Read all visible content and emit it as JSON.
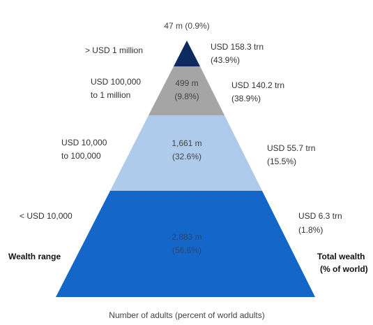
{
  "levels": [
    {
      "range": [
        "> USD 1 million"
      ],
      "adults": [
        "47 m (0.9%)"
      ],
      "wealth": [
        "USD 158.3 trn",
        "(43.9%)"
      ]
    },
    {
      "range": [
        "USD 100,000",
        "to 1 million"
      ],
      "adults": [
        "499 m",
        "(9.8%)"
      ],
      "wealth": [
        "USD 140.2 trn",
        "(38.9%)"
      ]
    },
    {
      "range": [
        "USD 10,000",
        "to 100,000"
      ],
      "adults": [
        "1,661 m",
        "(32.6%)"
      ],
      "wealth": [
        "USD 55.7 trn",
        "(15.5%)"
      ]
    },
    {
      "range": [
        "< USD 10,000"
      ],
      "adults": [
        "2,883 m",
        "(56.6%)"
      ],
      "wealth": [
        "USD 6.3 trn",
        "(1.8%)"
      ]
    }
  ],
  "left_heading": "Wealth range",
  "right_heading": [
    "Total wealth",
    "(% of world)"
  ],
  "x_label": "Number of adults (percent of world adults)"
}
